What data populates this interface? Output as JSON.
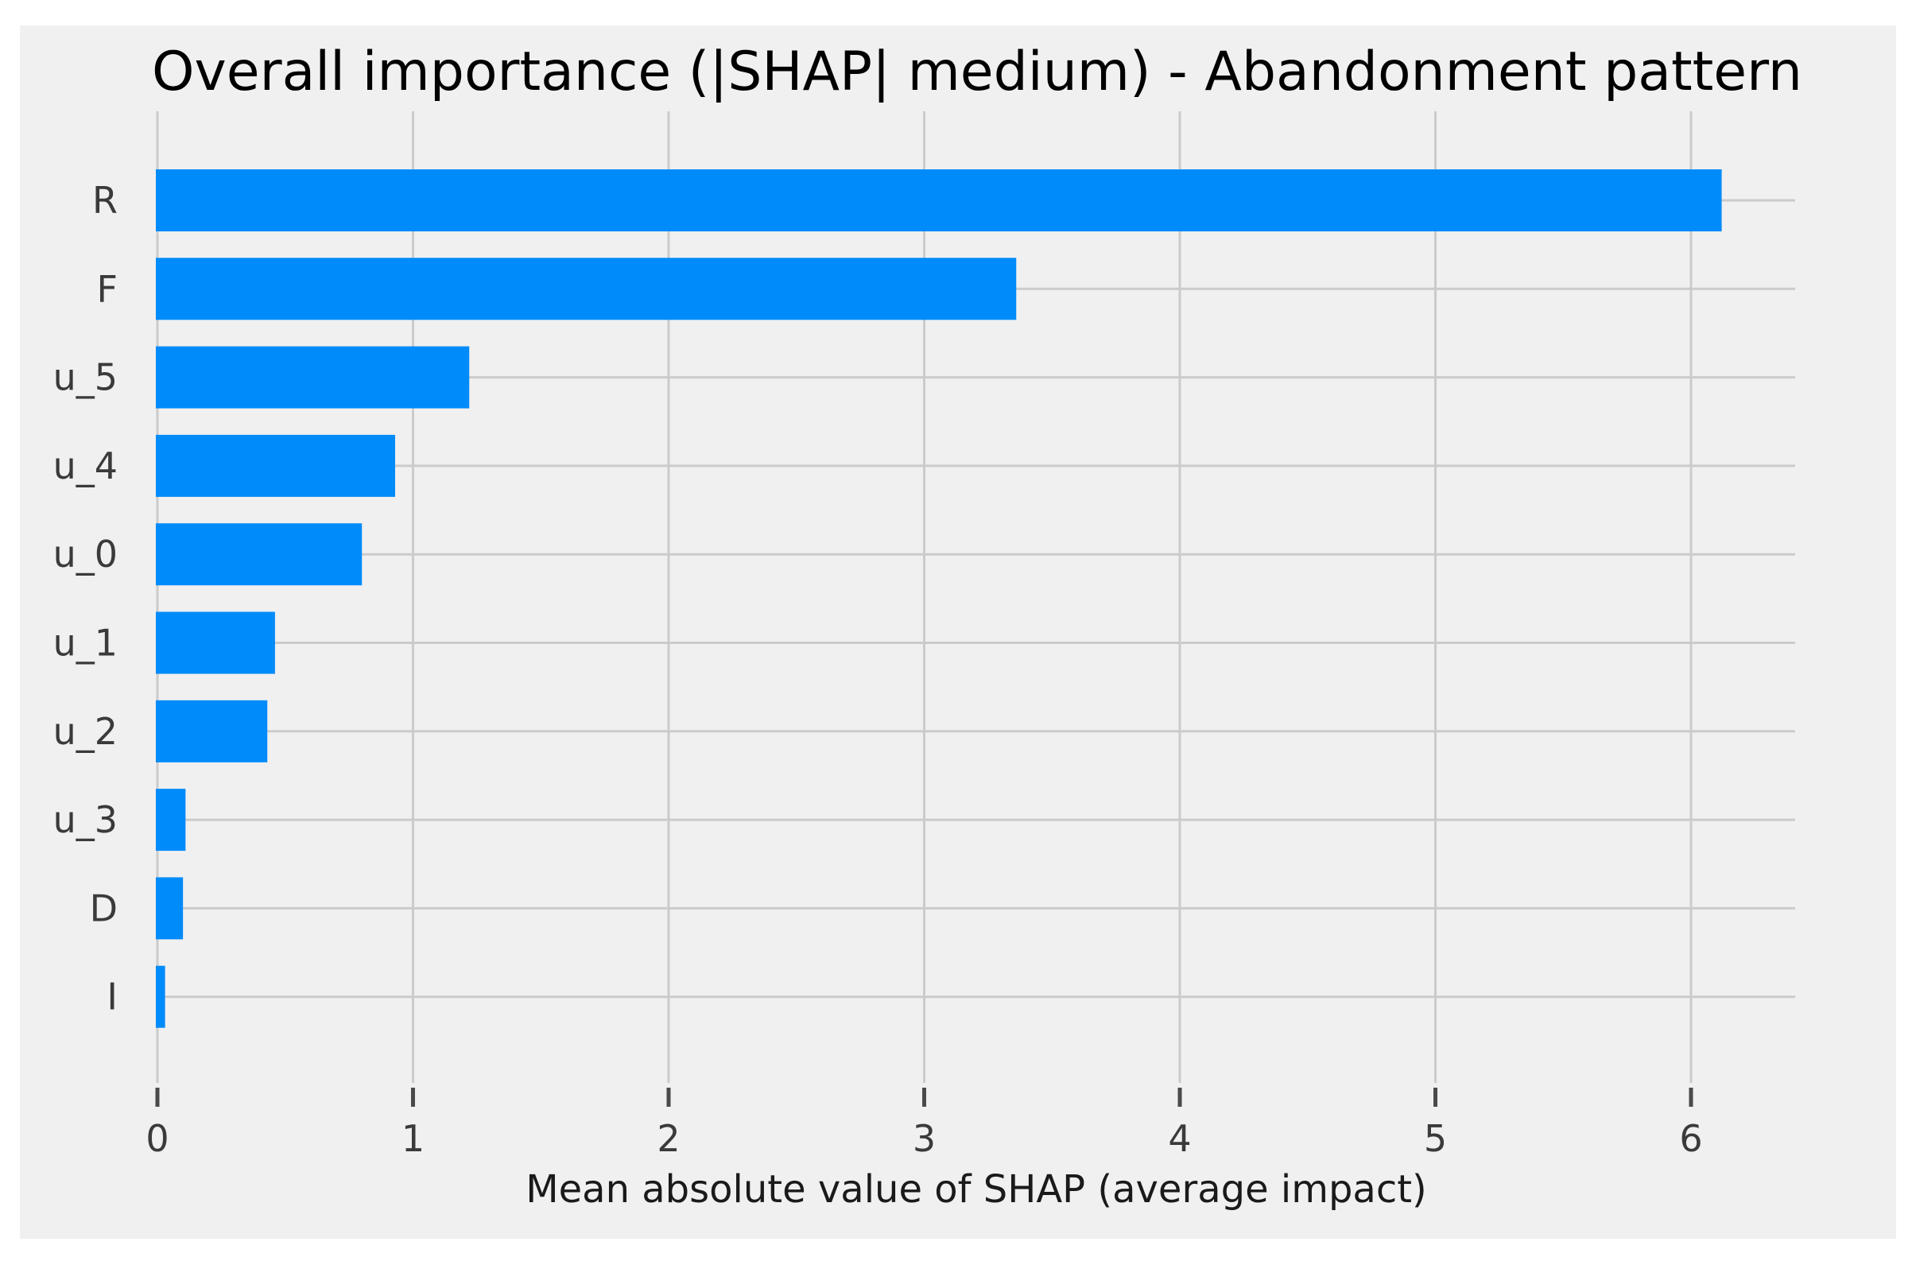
{
  "chart_data": {
    "type": "bar",
    "orientation": "horizontal",
    "title": "Overall importance (|SHAP| medium) - Abandonment pattern",
    "xlabel": "Mean absolute value of SHAP (average impact)",
    "ylabel": "",
    "categories": [
      "R",
      "F",
      "u_5",
      "u_4",
      "u_0",
      "u_1",
      "u_2",
      "u_3",
      "D",
      "I"
    ],
    "values": [
      6.12,
      3.36,
      1.22,
      0.93,
      0.8,
      0.46,
      0.43,
      0.11,
      0.1,
      0.03
    ],
    "xlim": [
      0,
      6.5
    ],
    "xticks": [
      0,
      1,
      2,
      3,
      4,
      5,
      6
    ],
    "grid": true,
    "legend": "none",
    "colors": {
      "bar": "#008bfb",
      "background": "#f0f0f0",
      "grid": "#cbcbcb",
      "tick_mark": "#4a4a4a"
    }
  }
}
